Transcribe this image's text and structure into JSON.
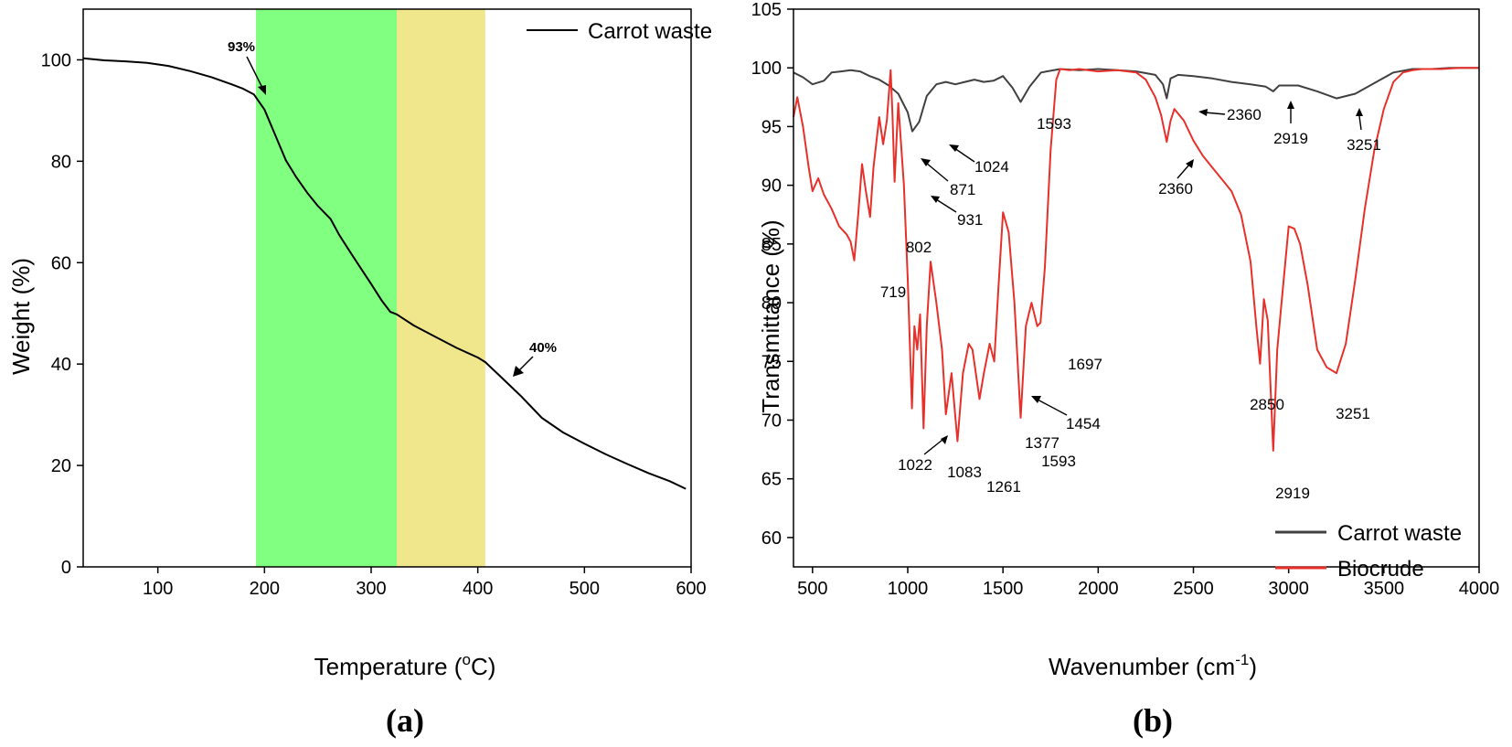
{
  "chart_data": [
    {
      "type": "line",
      "panel_label": "(a)",
      "xlabel": "Temperature (",
      "xlabel_sup": "o",
      "xlabel_end": "C)",
      "ylabel": "Weight (%)",
      "xlim": [
        30,
        600
      ],
      "ylim": [
        0,
        110
      ],
      "x_ticks": [
        100,
        200,
        300,
        400,
        500,
        600
      ],
      "y_ticks": [
        0,
        20,
        40,
        60,
        80,
        100
      ],
      "grid": false,
      "legend_position": "top-right",
      "shaded_regions": [
        {
          "x0": 192,
          "x1": 324,
          "color": "#80FF80"
        },
        {
          "x0": 324,
          "x1": 407,
          "color": "#F0E68C"
        }
      ],
      "series": [
        {
          "name": "Carrot waste",
          "color": "#000000",
          "x": [
            30,
            50,
            70,
            90,
            110,
            130,
            150,
            170,
            180,
            190,
            200,
            210,
            220,
            230,
            240,
            250,
            262,
            270,
            280,
            290,
            300,
            310,
            318,
            324,
            340,
            360,
            380,
            400,
            407,
            420,
            440,
            460,
            480,
            500,
            520,
            540,
            560,
            580,
            595
          ],
          "y": [
            100.3,
            99.9,
            99.7,
            99.4,
            98.8,
            97.8,
            96.6,
            95.1,
            94.3,
            93.2,
            90.2,
            85.2,
            80.2,
            76.8,
            73.8,
            71.2,
            68.6,
            65.5,
            62.2,
            59.0,
            55.8,
            52.5,
            50.3,
            49.8,
            47.6,
            45.4,
            43.2,
            41.3,
            40.4,
            37.8,
            33.8,
            29.4,
            26.5,
            24.3,
            22.2,
            20.3,
            18.5,
            16.9,
            15.4
          ]
        }
      ],
      "annotations": [
        {
          "text": "93%",
          "x": 190,
          "y": 93
        },
        {
          "text": "40%",
          "x": 405,
          "y": 40.5
        }
      ]
    },
    {
      "type": "line",
      "panel_label": "(b)",
      "xlabel": "Wavenumber (cm",
      "xlabel_sup": "-1",
      "xlabel_end": ")",
      "ylabel": "Transmittance (%)",
      "xlim": [
        400,
        4000
      ],
      "ylim": [
        57.5,
        105
      ],
      "x_ticks": [
        500,
        1000,
        1500,
        2000,
        2500,
        3000,
        3500,
        4000
      ],
      "y_ticks": [
        60,
        65,
        70,
        75,
        80,
        85,
        90,
        95,
        100,
        105
      ],
      "grid": false,
      "legend_position": "bottom-right",
      "series": [
        {
          "name": "Carrot waste",
          "color": "#404040",
          "x": [
            400,
            450,
            500,
            560,
            600,
            650,
            700,
            750,
            800,
            850,
            900,
            950,
            1000,
            1024,
            1060,
            1100,
            1150,
            1200,
            1250,
            1300,
            1350,
            1400,
            1450,
            1500,
            1550,
            1593,
            1640,
            1700,
            1800,
            1900,
            2000,
            2100,
            2200,
            2300,
            2340,
            2360,
            2380,
            2420,
            2500,
            2600,
            2700,
            2800,
            2880,
            2919,
            2950,
            3050,
            3150,
            3251,
            3350,
            3450,
            3550,
            3650,
            3750,
            3850,
            3950,
            4000
          ],
          "y": [
            99.6,
            99.2,
            98.6,
            98.9,
            99.6,
            99.7,
            99.8,
            99.7,
            99.3,
            99.0,
            98.5,
            97.8,
            96.2,
            94.6,
            95.4,
            97.6,
            98.6,
            98.8,
            98.6,
            98.8,
            99.0,
            98.8,
            98.9,
            99.3,
            98.3,
            97.1,
            98.4,
            99.6,
            99.9,
            99.8,
            99.9,
            99.8,
            99.7,
            99.4,
            98.6,
            97.4,
            99.1,
            99.4,
            99.3,
            99.1,
            98.8,
            98.6,
            98.4,
            98.0,
            98.5,
            98.5,
            98.0,
            97.4,
            97.8,
            98.7,
            99.6,
            99.9,
            99.9,
            100.0,
            100.0,
            100.0
          ]
        },
        {
          "name": "Biocrude",
          "color": "#E8302A",
          "x": [
            400,
            420,
            450,
            480,
            500,
            530,
            560,
            600,
            640,
            680,
            700,
            719,
            740,
            760,
            780,
            802,
            820,
            850,
            871,
            890,
            910,
            920,
            931,
            950,
            965,
            980,
            1000,
            1022,
            1035,
            1050,
            1065,
            1083,
            1100,
            1120,
            1150,
            1180,
            1200,
            1230,
            1261,
            1290,
            1320,
            1340,
            1377,
            1400,
            1430,
            1454,
            1475,
            1500,
            1530,
            1560,
            1593,
            1620,
            1650,
            1680,
            1697,
            1720,
            1750,
            1780,
            1800,
            1850,
            1900,
            2000,
            2100,
            2200,
            2250,
            2300,
            2330,
            2360,
            2380,
            2400,
            2450,
            2500,
            2550,
            2600,
            2650,
            2700,
            2750,
            2800,
            2830,
            2850,
            2870,
            2890,
            2919,
            2940,
            2960,
            3000,
            3030,
            3060,
            3100,
            3150,
            3200,
            3251,
            3300,
            3350,
            3400,
            3450,
            3500,
            3550,
            3600,
            3650,
            3700,
            3800,
            3900,
            4000
          ],
          "y": [
            95.8,
            97.5,
            95.0,
            91.5,
            89.5,
            90.6,
            89.2,
            88.0,
            86.5,
            85.8,
            85.2,
            83.6,
            87.5,
            91.8,
            89.5,
            87.3,
            91.5,
            95.8,
            93.5,
            95.5,
            99.8,
            96.0,
            90.3,
            97.0,
            93.5,
            90.0,
            82.0,
            71.0,
            78.0,
            76.0,
            79.0,
            69.3,
            78.0,
            83.5,
            80.0,
            76.0,
            70.5,
            74.0,
            68.2,
            74.0,
            76.5,
            76.0,
            71.8,
            74.0,
            76.5,
            75.0,
            81.0,
            87.7,
            86.0,
            80.0,
            70.2,
            78.0,
            80.0,
            78.0,
            78.3,
            83.0,
            93.0,
            99.0,
            99.9,
            99.8,
            99.9,
            99.7,
            99.8,
            99.6,
            99.0,
            97.5,
            96.0,
            93.7,
            95.5,
            96.5,
            95.5,
            93.8,
            92.5,
            91.5,
            90.5,
            89.5,
            87.5,
            83.5,
            78.0,
            74.8,
            80.3,
            78.5,
            67.4,
            76.0,
            79.5,
            86.5,
            86.3,
            85.0,
            81.5,
            76.0,
            74.5,
            74.0,
            76.5,
            82.0,
            88.0,
            93.0,
            96.5,
            98.8,
            99.6,
            99.8,
            99.9,
            99.9,
            100.0,
            100.0
          ]
        }
      ],
      "annotations_carrot": [
        "1024",
        "1593",
        "2360",
        "2919",
        "3251"
      ],
      "annotations_biocrude": [
        "719",
        "802",
        "871",
        "931",
        "1022",
        "1083",
        "1261",
        "1377",
        "1454",
        "1593",
        "1697",
        "2360",
        "2850",
        "2919",
        "3251"
      ]
    }
  ]
}
